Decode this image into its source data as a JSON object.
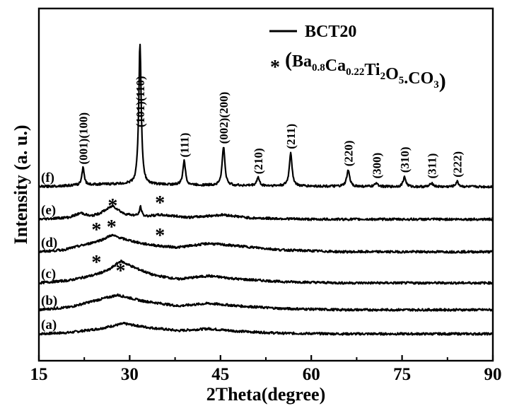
{
  "chart_data": {
    "type": "line",
    "xlabel": "2Theta(degree)",
    "ylabel": "Intensity (a. u.)",
    "xlim": [
      15,
      90
    ],
    "xticks": [
      15,
      30,
      45,
      60,
      75,
      90
    ],
    "xtick_labels": [
      "15",
      "30",
      "45",
      "60",
      "75",
      "90"
    ],
    "grid": false,
    "legend": {
      "placement": "top-right",
      "line_entry": "BCT20",
      "star_symbol": "*",
      "star_entry": {
        "open": "(",
        "parts": [
          {
            "t": "Ba",
            "sub": false
          },
          {
            "t": "0.8",
            "sub": true
          },
          {
            "t": "Ca",
            "sub": false
          },
          {
            "t": "0.22",
            "sub": true
          },
          {
            "t": "Ti",
            "sub": false
          },
          {
            "t": "2",
            "sub": true
          },
          {
            "t": "O",
            "sub": false
          },
          {
            "t": "5",
            "sub": true
          },
          {
            "t": ".CO",
            "sub": false
          },
          {
            "t": "3",
            "sub": true
          }
        ],
        "close": ")"
      }
    },
    "series": [
      {
        "label": "(a)",
        "baseline": 0,
        "profile": [
          [
            15,
            0.0
          ],
          [
            20,
            0.2
          ],
          [
            25,
            0.8
          ],
          [
            29,
            1.6
          ],
          [
            33,
            1.0
          ],
          [
            38,
            0.5
          ],
          [
            43,
            0.8
          ],
          [
            48,
            0.4
          ],
          [
            55,
            0.1
          ],
          [
            65,
            0.0
          ],
          [
            75,
            0.0
          ],
          [
            90,
            0.0
          ]
        ],
        "peaks": [],
        "stars": []
      },
      {
        "label": "(b)",
        "baseline": 1,
        "profile": [
          [
            15,
            0.0
          ],
          [
            20,
            0.4
          ],
          [
            25,
            1.6
          ],
          [
            28,
            2.3
          ],
          [
            32,
            1.4
          ],
          [
            38,
            0.6
          ],
          [
            43,
            1.0
          ],
          [
            48,
            0.6
          ],
          [
            55,
            0.2
          ],
          [
            65,
            0.0
          ],
          [
            90,
            0.0
          ]
        ],
        "peaks": [],
        "stars": []
      },
      {
        "label": "(c)",
        "baseline": 2,
        "profile": [
          [
            15,
            0.0
          ],
          [
            20,
            0.4
          ],
          [
            24,
            1.2
          ],
          [
            26.5,
            2.0
          ],
          [
            28.5,
            3.4
          ],
          [
            31,
            2.3
          ],
          [
            34,
            1.2
          ],
          [
            38,
            0.6
          ],
          [
            43,
            1.1
          ],
          [
            48,
            0.6
          ],
          [
            55,
            0.2
          ],
          [
            65,
            0.0
          ],
          [
            90,
            0.0
          ]
        ],
        "peaks": [],
        "stars": [
          24.5,
          28.5
        ]
      },
      {
        "label": "(d)",
        "baseline": 3,
        "profile": [
          [
            15,
            0.0
          ],
          [
            19,
            0.3
          ],
          [
            23,
            1.2
          ],
          [
            25.5,
            1.9
          ],
          [
            27,
            2.6
          ],
          [
            29,
            2.0
          ],
          [
            32,
            1.3
          ],
          [
            35,
            0.9
          ],
          [
            38,
            0.7
          ],
          [
            43,
            1.3
          ],
          [
            48,
            0.9
          ],
          [
            55,
            0.3
          ],
          [
            65,
            0.0
          ],
          [
            90,
            0.0
          ]
        ],
        "peaks": [],
        "stars": [
          24.5,
          27,
          35
        ]
      },
      {
        "label": "(e)",
        "baseline": 4,
        "profile": [
          [
            15,
            0.0
          ],
          [
            20,
            0.3
          ],
          [
            22,
            1.0
          ],
          [
            23.5,
            0.5
          ],
          [
            25,
            0.9
          ],
          [
            27.2,
            2.1
          ],
          [
            29,
            0.9
          ],
          [
            32,
            0.4
          ],
          [
            35,
            0.7
          ],
          [
            40,
            0.3
          ],
          [
            45.5,
            0.7
          ],
          [
            50,
            0.2
          ],
          [
            60,
            0.0
          ],
          [
            90,
            0.0
          ]
        ],
        "peaks": [
          [
            31.8,
            1.5,
            0.35
          ]
        ],
        "stars": [
          27.2,
          35
        ]
      },
      {
        "label": "(f)",
        "baseline": 5,
        "profile": [
          [
            15,
            0.0
          ],
          [
            20,
            0.2
          ],
          [
            25,
            0.4
          ],
          [
            30,
            0.5
          ],
          [
            40,
            0.3
          ],
          [
            50,
            0.2
          ],
          [
            60,
            0.1
          ],
          [
            75,
            0.0
          ],
          [
            90,
            0.0
          ]
        ],
        "peaks": [
          [
            22.3,
            2.8,
            0.35
          ],
          [
            31.7,
            22.0,
            0.38
          ],
          [
            39.0,
            3.9,
            0.38
          ],
          [
            45.5,
            6.0,
            0.42
          ],
          [
            51.2,
            1.3,
            0.4
          ],
          [
            56.6,
            5.2,
            0.42
          ],
          [
            66.1,
            2.5,
            0.45
          ],
          [
            70.8,
            0.6,
            0.45
          ],
          [
            75.4,
            1.5,
            0.45
          ],
          [
            79.9,
            0.6,
            0.45
          ],
          [
            84.1,
            0.8,
            0.45
          ]
        ],
        "stars": []
      }
    ],
    "peak_labels": [
      {
        "x": 22.3,
        "text": "(001)(100)"
      },
      {
        "x": 31.7,
        "text": "(101)(110)"
      },
      {
        "x": 39.0,
        "text": "(111)"
      },
      {
        "x": 45.5,
        "text": "(002)(200)"
      },
      {
        "x": 51.2,
        "text": "(210)"
      },
      {
        "x": 56.6,
        "text": "(211)"
      },
      {
        "x": 66.1,
        "text": "(220)"
      },
      {
        "x": 70.8,
        "text": "(300)"
      },
      {
        "x": 75.4,
        "text": "(310)"
      },
      {
        "x": 79.9,
        "text": "(311)"
      },
      {
        "x": 84.1,
        "text": "(222)"
      }
    ]
  }
}
